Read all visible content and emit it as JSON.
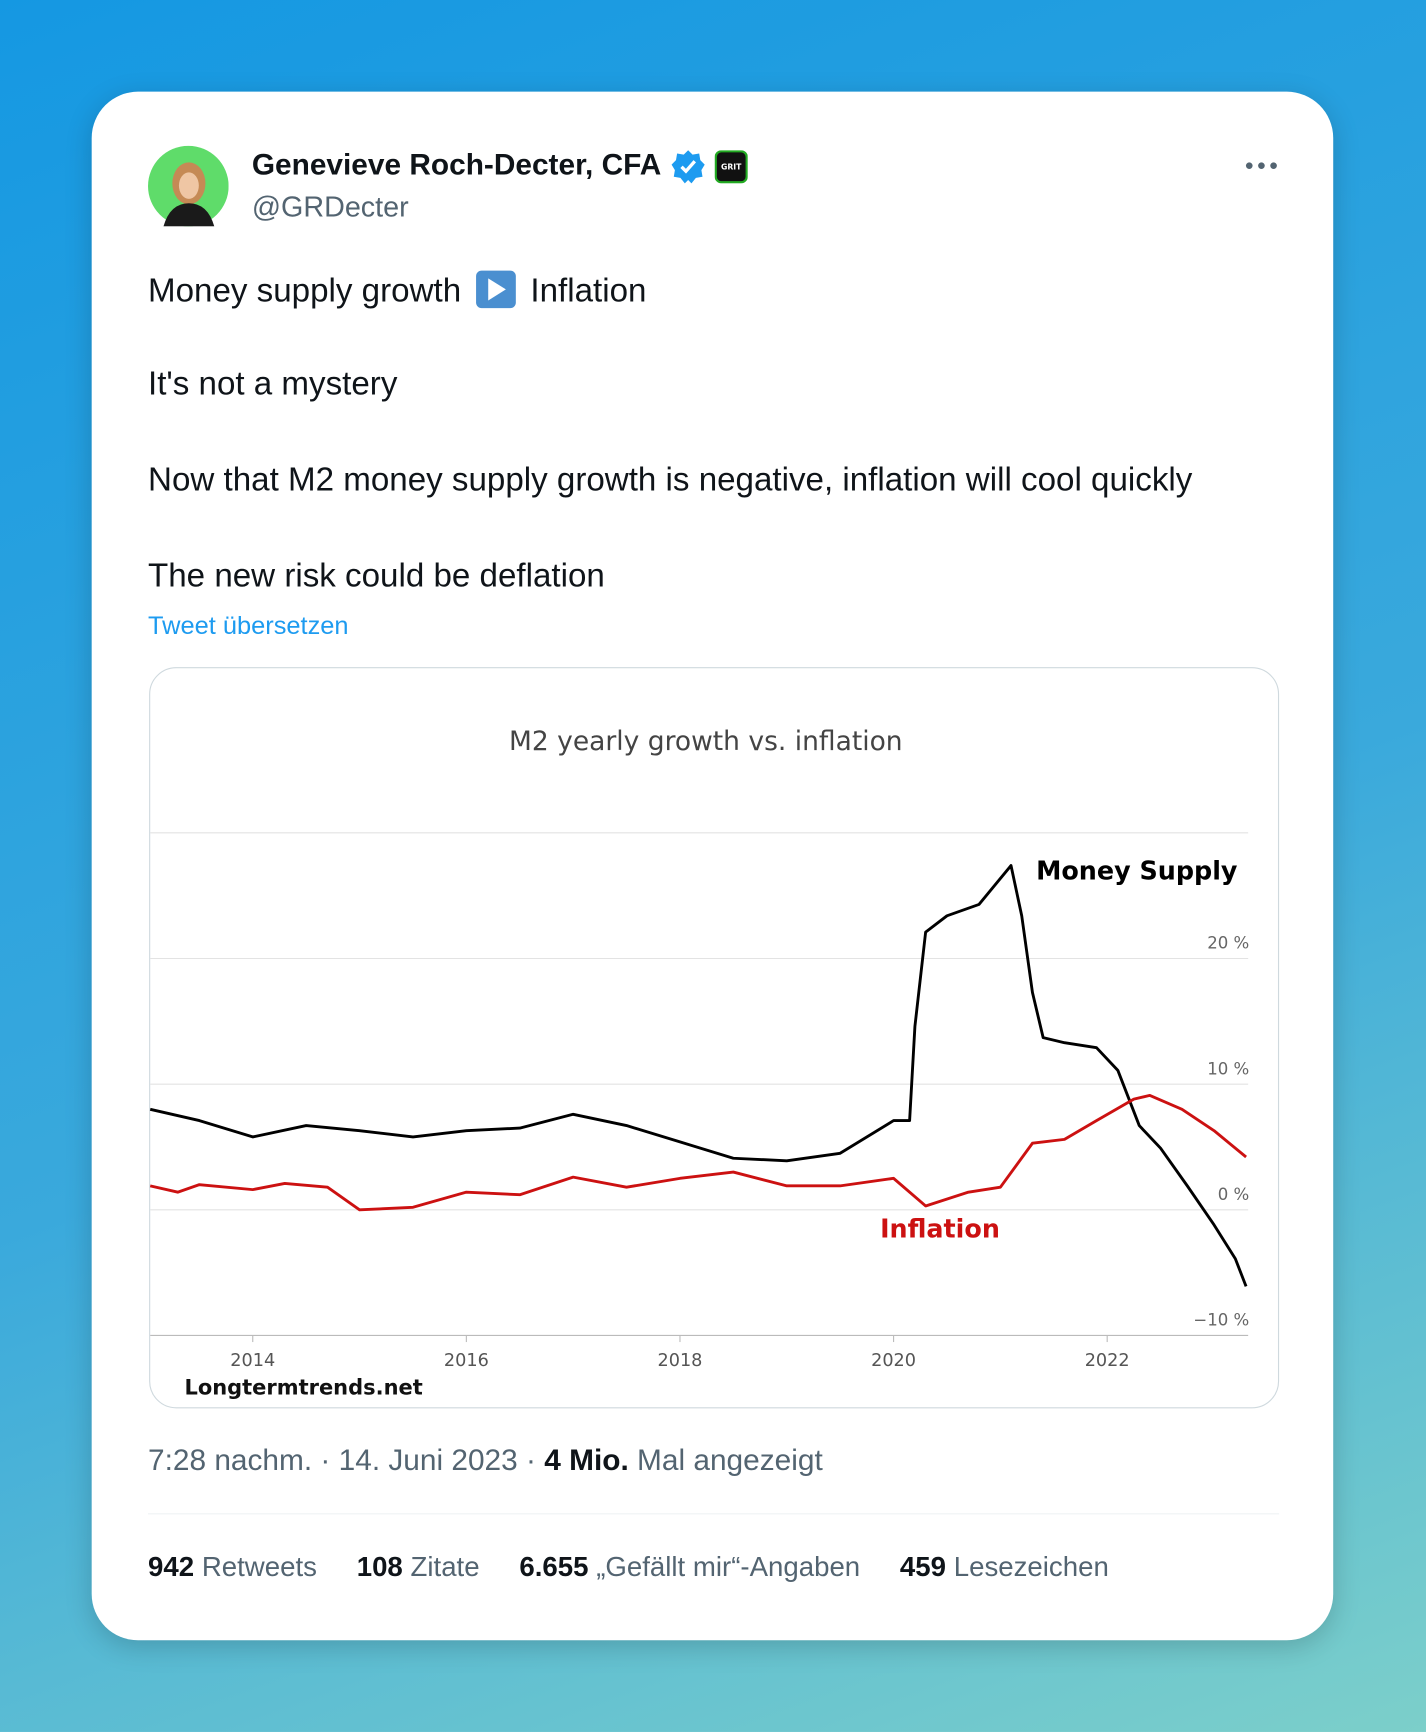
{
  "author": {
    "name": "Genevieve Roch-Decter, CFA",
    "handle": "@GRDecter",
    "badge": "GRIT"
  },
  "tweet": {
    "lines": [
      [
        "Money supply growth",
        "Inflation"
      ],
      [
        "It's not a mystery"
      ],
      [
        "Now that M2 money supply growth is negative, inflation will cool quickly"
      ],
      [
        "The new risk could be deflation"
      ]
    ],
    "translate": "Tweet übersetzen"
  },
  "chart_data": {
    "type": "line",
    "title": "M2 yearly growth vs. inflation",
    "source": "Longtermtrends.net",
    "xlim": [
      2013.04,
      2023.32
    ],
    "xticks": [
      2014,
      2016,
      2018,
      2020,
      2022
    ],
    "ylim": [
      -10,
      30
    ],
    "yticks": [
      {
        "value": -10,
        "label": "−10 %"
      },
      {
        "value": 0,
        "label": "0 %"
      },
      {
        "value": 10,
        "label": "10 %"
      },
      {
        "value": 20,
        "label": "20 %"
      }
    ],
    "series": [
      {
        "name": "Money Supply",
        "color": "#000000",
        "x": [
          2013.04,
          2013.5,
          2014.0,
          2014.5,
          2015.0,
          2015.5,
          2016.0,
          2016.5,
          2017.0,
          2017.5,
          2018.0,
          2018.5,
          2019.0,
          2019.5,
          2020.0,
          2020.15,
          2020.2,
          2020.3,
          2020.5,
          2020.8,
          2021.1,
          2021.2,
          2021.3,
          2021.4,
          2021.6,
          2021.9,
          2022.1,
          2022.3,
          2022.5,
          2022.75,
          2023.0,
          2023.2,
          2023.3
        ],
        "values": [
          8.0,
          7.1,
          5.8,
          6.7,
          6.3,
          5.8,
          6.3,
          6.5,
          7.6,
          6.7,
          5.4,
          4.1,
          3.9,
          4.5,
          7.1,
          7.1,
          14.6,
          22.1,
          23.4,
          24.3,
          27.4,
          23.4,
          17.3,
          13.7,
          13.3,
          12.9,
          11.1,
          6.7,
          4.9,
          1.9,
          -1.2,
          -3.9,
          -6.1
        ]
      },
      {
        "name": "Inflation",
        "color": "#cc1111",
        "x": [
          2013.04,
          2013.3,
          2013.5,
          2014.0,
          2014.3,
          2014.7,
          2015.0,
          2015.5,
          2016.0,
          2016.5,
          2017.0,
          2017.5,
          2018.0,
          2018.5,
          2019.0,
          2019.5,
          2020.0,
          2020.3,
          2020.7,
          2021.0,
          2021.3,
          2021.6,
          2021.9,
          2022.25,
          2022.4,
          2022.7,
          2023.0,
          2023.3
        ],
        "values": [
          1.9,
          1.4,
          2.0,
          1.6,
          2.1,
          1.8,
          0.0,
          0.2,
          1.4,
          1.2,
          2.6,
          1.8,
          2.5,
          3.0,
          1.9,
          1.9,
          2.5,
          0.3,
          1.4,
          1.8,
          5.3,
          5.6,
          7.1,
          8.8,
          9.1,
          8.0,
          6.3,
          4.2
        ]
      }
    ]
  },
  "meta": {
    "time": "7:28 nachm. · 14. Juni 2023 · ",
    "views": "4 Mio.",
    "views_label": " Mal angezeigt"
  },
  "stats": [
    {
      "count": "942",
      "label": "Retweets"
    },
    {
      "count": "108",
      "label": "Zitate"
    },
    {
      "count": "6.655",
      "label": "„Gefällt mir“-Angaben"
    },
    {
      "count": "459",
      "label": "Lesezeichen"
    }
  ]
}
